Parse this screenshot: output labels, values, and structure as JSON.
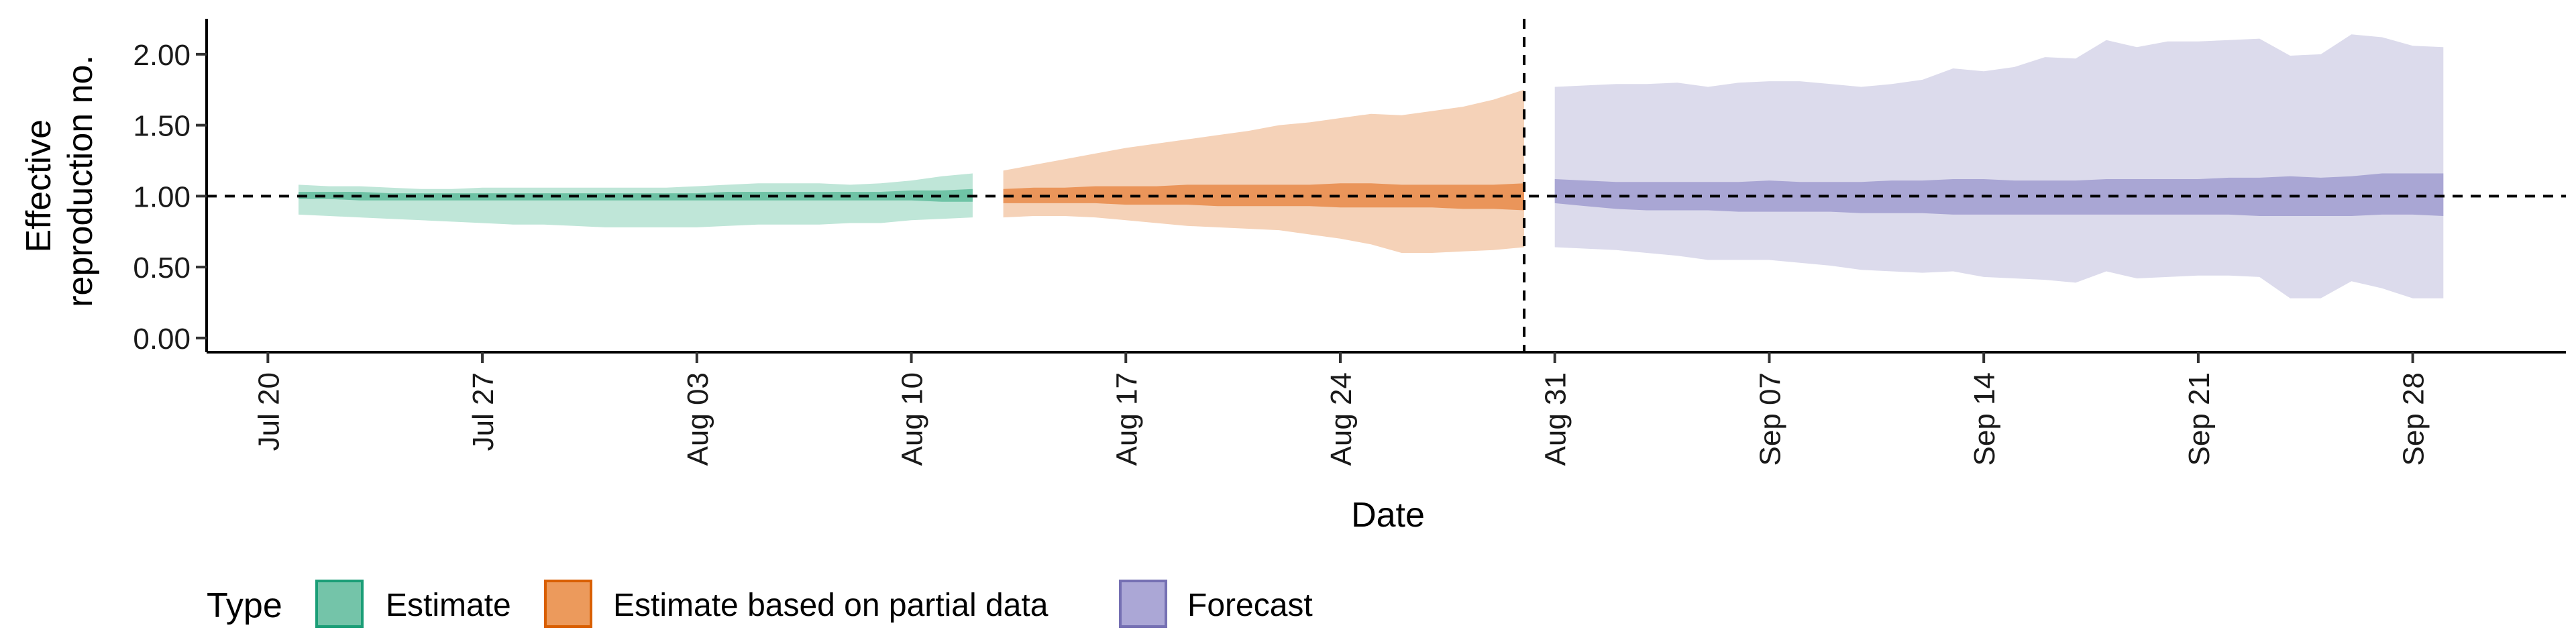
{
  "chart_data": {
    "type": "area",
    "xlabel": "Date",
    "ylabel": [
      "Effective",
      "reproduction no."
    ],
    "x_ticks": [
      "2020-07-20",
      "2020-07-27",
      "2020-08-03",
      "2020-08-10",
      "2020-08-17",
      "2020-08-24",
      "2020-08-31",
      "2020-09-07",
      "2020-09-14",
      "2020-09-21",
      "2020-09-28"
    ],
    "x_tick_labels": [
      "Jul 20",
      "Jul 27",
      "Aug 03",
      "Aug 10",
      "Aug 17",
      "Aug 24",
      "Aug 31",
      "Sep 07",
      "Sep 14",
      "Sep 21",
      "Sep 28"
    ],
    "xlim": [
      "2020-07-18",
      "2020-10-03"
    ],
    "y_ticks": [
      0,
      0.5,
      1,
      1.5,
      2
    ],
    "y_tick_labels": [
      "0.00",
      "0.50",
      "1.00",
      "1.50",
      "2.00"
    ],
    "ylim": [
      -0.1,
      2.25
    ],
    "grid": false,
    "reference_line": {
      "y": 1.0,
      "style": "dashed"
    },
    "forecast_line": {
      "x": "2020-08-30",
      "style": "dashed"
    },
    "legend": {
      "title": "Type",
      "placement": "bottom-left",
      "entries": [
        {
          "label": "Estimate",
          "fill": "#74c4a9",
          "border": "#1b9e77"
        },
        {
          "label": "Estimate based on partial data",
          "fill": "#ec9a5c",
          "border": "#d95f02"
        },
        {
          "label": "Forecast",
          "fill": "#aba7d6",
          "border": "#7570b3"
        }
      ]
    },
    "series": [
      {
        "name": "Estimate",
        "color": "#1b9e77",
        "outer_color": "#bfe6d8",
        "inner_color": "#6fc3a6",
        "x": [
          "2020-07-21",
          "2020-07-22",
          "2020-07-23",
          "2020-07-24",
          "2020-07-25",
          "2020-07-26",
          "2020-07-27",
          "2020-07-28",
          "2020-07-29",
          "2020-07-30",
          "2020-07-31",
          "2020-08-01",
          "2020-08-02",
          "2020-08-03",
          "2020-08-04",
          "2020-08-05",
          "2020-08-06",
          "2020-08-07",
          "2020-08-08",
          "2020-08-09",
          "2020-08-10",
          "2020-08-11",
          "2020-08-12"
        ],
        "outer_upper": [
          1.08,
          1.07,
          1.07,
          1.06,
          1.05,
          1.05,
          1.06,
          1.06,
          1.06,
          1.06,
          1.06,
          1.06,
          1.06,
          1.07,
          1.08,
          1.09,
          1.09,
          1.09,
          1.08,
          1.09,
          1.11,
          1.14,
          1.16
        ],
        "inner_upper": [
          1.03,
          1.03,
          1.03,
          1.02,
          1.02,
          1.02,
          1.02,
          1.02,
          1.02,
          1.02,
          1.02,
          1.02,
          1.02,
          1.02,
          1.03,
          1.03,
          1.03,
          1.03,
          1.03,
          1.03,
          1.04,
          1.04,
          1.05
        ],
        "inner_lower": [
          0.98,
          0.98,
          0.97,
          0.97,
          0.97,
          0.97,
          0.97,
          0.97,
          0.97,
          0.97,
          0.97,
          0.97,
          0.97,
          0.97,
          0.97,
          0.97,
          0.97,
          0.97,
          0.97,
          0.97,
          0.97,
          0.96,
          0.96
        ],
        "outer_lower": [
          0.87,
          0.86,
          0.85,
          0.84,
          0.83,
          0.82,
          0.81,
          0.8,
          0.8,
          0.79,
          0.78,
          0.78,
          0.78,
          0.78,
          0.79,
          0.8,
          0.8,
          0.8,
          0.81,
          0.81,
          0.83,
          0.84,
          0.85
        ]
      },
      {
        "name": "Estimate based on partial data",
        "color": "#d95f02",
        "outer_color": "#f5d2b8",
        "inner_color": "#ea955a",
        "x": [
          "2020-08-13",
          "2020-08-14",
          "2020-08-15",
          "2020-08-16",
          "2020-08-17",
          "2020-08-18",
          "2020-08-19",
          "2020-08-20",
          "2020-08-21",
          "2020-08-22",
          "2020-08-23",
          "2020-08-24",
          "2020-08-25",
          "2020-08-26",
          "2020-08-27",
          "2020-08-28",
          "2020-08-29",
          "2020-08-30"
        ],
        "outer_upper": [
          1.18,
          1.22,
          1.26,
          1.3,
          1.34,
          1.37,
          1.4,
          1.43,
          1.46,
          1.5,
          1.52,
          1.55,
          1.58,
          1.57,
          1.6,
          1.63,
          1.68,
          1.75
        ],
        "inner_upper": [
          1.05,
          1.06,
          1.06,
          1.07,
          1.07,
          1.07,
          1.08,
          1.08,
          1.08,
          1.08,
          1.08,
          1.09,
          1.09,
          1.08,
          1.08,
          1.08,
          1.08,
          1.09
        ],
        "inner_lower": [
          0.95,
          0.95,
          0.95,
          0.95,
          0.94,
          0.94,
          0.94,
          0.93,
          0.93,
          0.93,
          0.93,
          0.92,
          0.92,
          0.92,
          0.92,
          0.91,
          0.91,
          0.9
        ],
        "outer_lower": [
          0.85,
          0.86,
          0.86,
          0.85,
          0.83,
          0.81,
          0.79,
          0.78,
          0.77,
          0.76,
          0.73,
          0.7,
          0.66,
          0.6,
          0.6,
          0.61,
          0.62,
          0.64
        ]
      },
      {
        "name": "Forecast",
        "color": "#7570b3",
        "outer_color": "#dcdbec",
        "inner_color": "#a9a6d4",
        "x": [
          "2020-08-31",
          "2020-09-01",
          "2020-09-02",
          "2020-09-03",
          "2020-09-04",
          "2020-09-05",
          "2020-09-06",
          "2020-09-07",
          "2020-09-08",
          "2020-09-09",
          "2020-09-10",
          "2020-09-11",
          "2020-09-12",
          "2020-09-13",
          "2020-09-14",
          "2020-09-15",
          "2020-09-16",
          "2020-09-17",
          "2020-09-18",
          "2020-09-19",
          "2020-09-20",
          "2020-09-21",
          "2020-09-22",
          "2020-09-23",
          "2020-09-24",
          "2020-09-25",
          "2020-09-26",
          "2020-09-27",
          "2020-09-28",
          "2020-09-29"
        ],
        "outer_upper": [
          1.77,
          1.78,
          1.79,
          1.79,
          1.8,
          1.77,
          1.8,
          1.81,
          1.81,
          1.79,
          1.77,
          1.79,
          1.82,
          1.9,
          1.88,
          1.91,
          1.98,
          1.97,
          2.1,
          2.05,
          2.09,
          2.09,
          2.1,
          2.11,
          1.99,
          2.0,
          2.14,
          2.12,
          2.06,
          2.05
        ],
        "inner_upper": [
          1.12,
          1.11,
          1.1,
          1.1,
          1.1,
          1.1,
          1.1,
          1.11,
          1.1,
          1.1,
          1.1,
          1.11,
          1.11,
          1.12,
          1.12,
          1.11,
          1.11,
          1.11,
          1.12,
          1.12,
          1.12,
          1.12,
          1.13,
          1.13,
          1.14,
          1.13,
          1.14,
          1.16,
          1.16,
          1.16
        ],
        "inner_lower": [
          0.95,
          0.93,
          0.91,
          0.9,
          0.9,
          0.9,
          0.89,
          0.89,
          0.89,
          0.89,
          0.88,
          0.88,
          0.88,
          0.87,
          0.87,
          0.87,
          0.87,
          0.87,
          0.87,
          0.87,
          0.87,
          0.87,
          0.87,
          0.86,
          0.86,
          0.86,
          0.86,
          0.87,
          0.87,
          0.86
        ],
        "outer_lower": [
          0.64,
          0.63,
          0.62,
          0.6,
          0.58,
          0.55,
          0.55,
          0.55,
          0.53,
          0.51,
          0.48,
          0.47,
          0.46,
          0.47,
          0.43,
          0.42,
          0.41,
          0.39,
          0.47,
          0.42,
          0.43,
          0.44,
          0.44,
          0.43,
          0.28,
          0.28,
          0.4,
          0.35,
          0.28,
          0.28
        ]
      }
    ]
  }
}
